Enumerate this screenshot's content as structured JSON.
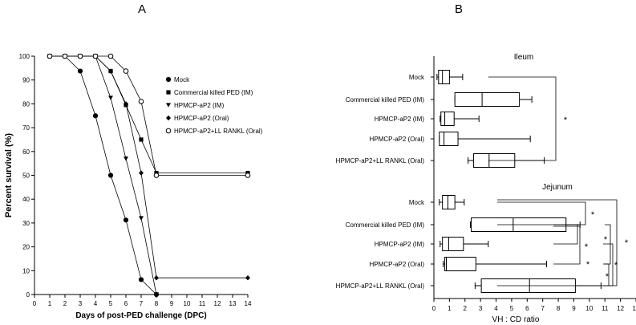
{
  "panels": {
    "a_label": "A",
    "b_label": "B"
  },
  "chart_data": [
    {
      "type": "line",
      "panel": "A",
      "xlabel": "Days of post-PED challenge  (DPC)",
      "ylabel": "Percent survival (%)",
      "xlim": [
        0,
        14
      ],
      "ylim": [
        0,
        100
      ],
      "xticks": [
        "0",
        "1",
        "2",
        "3",
        "4",
        "5",
        "6",
        "7",
        "8",
        "9",
        "10",
        "11",
        "12",
        "13",
        "14"
      ],
      "yticks": [
        "0",
        "10",
        "20",
        "30",
        "40",
        "50",
        "60",
        "70",
        "80",
        "90",
        "100"
      ],
      "grid": false,
      "legend_position": "right",
      "series": [
        {
          "name": "Mock",
          "marker": "circle",
          "x": [
            1,
            2,
            3,
            4,
            5,
            6,
            7,
            8
          ],
          "y": [
            100,
            100,
            93.75,
            75,
            50,
            31.25,
            6.25,
            0
          ]
        },
        {
          "name": "Commercial killed PED (IM)",
          "marker": "square",
          "x": [
            1,
            2,
            3,
            4,
            5,
            6,
            7,
            8,
            14
          ],
          "y": [
            100,
            100,
            100,
            100,
            93.75,
            79.5,
            65,
            51,
            51
          ]
        },
        {
          "name": "HPMCP-aP2 (IM)",
          "marker": "triangle-down",
          "x": [
            1,
            2,
            3,
            4,
            5,
            6,
            7,
            8
          ],
          "y": [
            100,
            100,
            100,
            100,
            82.5,
            57,
            32,
            0
          ]
        },
        {
          "name": "HPMCP-aP2 (Oral)",
          "marker": "diamond",
          "x": [
            1,
            2,
            3,
            4,
            5,
            6,
            7,
            8,
            14
          ],
          "y": [
            100,
            100,
            100,
            100,
            93.75,
            80,
            51,
            7,
            7
          ]
        },
        {
          "name": "HPMCP-aP2+LL RANKL (Oral)",
          "marker": "open-circle",
          "x": [
            1,
            2,
            3,
            4,
            5,
            6,
            7,
            8,
            14
          ],
          "y": [
            100,
            100,
            100,
            100,
            100,
            93.75,
            81,
            50,
            50
          ]
        }
      ]
    },
    {
      "type": "boxplot",
      "panel": "B",
      "orientation": "horizontal",
      "xlabel": "VH : CD ratio",
      "xlim": [
        0,
        13
      ],
      "xticks": [
        "0",
        "1",
        "2",
        "3",
        "4",
        "5",
        "6",
        "7",
        "8",
        "9",
        "10",
        "11",
        "12",
        "13"
      ],
      "groups": [
        {
          "title": "Ileum",
          "categories": [
            "Mock",
            "Commercial killed PED (IM)",
            "HPMCP-aP2 (IM)",
            "HPMCP-aP2 (Oral)",
            "HPMCP-aP2+LL RANKL (Oral)"
          ],
          "boxes": [
            {
              "min": 0.2,
              "q1": 0.3,
              "median": 0.55,
              "q3": 1.0,
              "max": 1.85
            },
            {
              "min": 1.35,
              "q1": 1.35,
              "median": 3.1,
              "q3": 5.5,
              "max": 6.3
            },
            {
              "min": 0.4,
              "q1": 0.45,
              "median": 0.7,
              "q3": 1.3,
              "max": 2.9
            },
            {
              "min": 0.35,
              "q1": 0.35,
              "median": 0.65,
              "q3": 1.55,
              "max": 6.2
            },
            {
              "min": 2.2,
              "q1": 2.55,
              "median": 3.55,
              "q3": 5.2,
              "max": 7.1
            }
          ],
          "significance": [
            "*"
          ]
        },
        {
          "title": "Jejunum",
          "categories": [
            "Mock",
            "Commercial killed PED (IM)",
            "HPMCP-aP2 (IM)",
            "HPMCP-aP2 (Oral)",
            "HPMCP-aP2+LL RANKL (Oral)"
          ],
          "boxes": [
            {
              "min": 0.35,
              "q1": 0.55,
              "median": 0.9,
              "q3": 1.35,
              "max": 1.95
            },
            {
              "min": 2.35,
              "q1": 2.4,
              "median": 5.1,
              "q3": 8.5,
              "max": 9.4
            },
            {
              "min": 0.4,
              "q1": 0.55,
              "median": 0.95,
              "q3": 1.9,
              "max": 3.5
            },
            {
              "min": 0.6,
              "q1": 0.7,
              "median": 0.8,
              "q3": 2.7,
              "max": 7.25
            },
            {
              "min": 2.65,
              "q1": 3.05,
              "median": 6.15,
              "q3": 9.1,
              "max": 10.75
            }
          ],
          "significance": [
            "*",
            "*",
            "*",
            "*",
            "*",
            "*",
            "*"
          ]
        }
      ]
    }
  ]
}
